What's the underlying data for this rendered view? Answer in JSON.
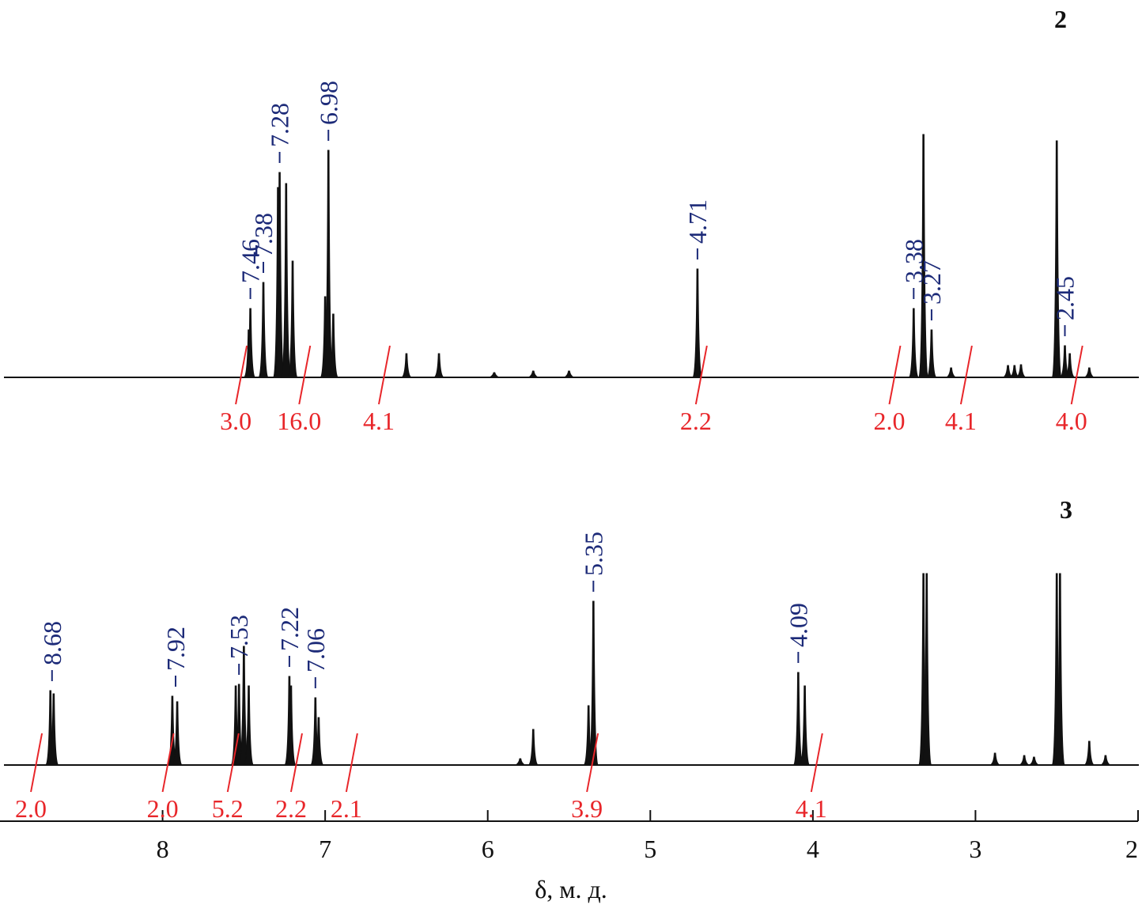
{
  "chart_data": {
    "type": "nmr",
    "xlabel": "δ, м. д.",
    "xlim": [
      9,
      2
    ],
    "xticks": [
      8,
      7,
      6,
      5,
      4,
      3,
      2
    ],
    "spectra": [
      {
        "label": "2",
        "ylim": [
          0,
          320
        ],
        "color": "#111111",
        "peaks": {
          "x": [
            7.47,
            7.46,
            7.38,
            7.29,
            7.28,
            7.24,
            7.2,
            7.0,
            6.98,
            6.95,
            6.5,
            6.3,
            5.96,
            5.72,
            5.5,
            4.71,
            3.38,
            3.32,
            3.27,
            3.15,
            2.8,
            2.76,
            2.72,
            2.5,
            2.45,
            2.42,
            2.3
          ],
          "values": [
            60,
            87,
            120,
            240,
            259,
            245,
            147,
            102,
            287,
            80,
            30,
            30,
            6,
            8,
            8,
            137,
            87,
            307,
            60,
            12,
            15,
            15,
            16,
            299,
            40,
            30,
            12
          ]
        },
        "shifts": {
          "values": [
            7.46,
            7.38,
            7.28,
            6.98,
            4.71,
            3.38,
            3.27,
            2.45
          ],
          "color": "#1c2a78"
        },
        "integrals": {
          "x": [
            7.55,
            7.16,
            6.67,
            4.72,
            3.53,
            3.09,
            2.41
          ],
          "values": [
            3,
            16,
            4.1,
            2.2,
            2,
            4.1,
            4
          ],
          "value_labels": [
            "3.0",
            "16.0",
            "4.1",
            "2.2",
            "2.0",
            "4.1",
            "4.0"
          ],
          "color": "#e8262a"
        }
      },
      {
        "label": "3",
        "ylim": [
          0,
          320
        ],
        "color": "#111111",
        "peaks": {
          "x": [
            8.69,
            8.67,
            7.94,
            7.91,
            7.55,
            7.53,
            7.5,
            7.47,
            7.22,
            7.21,
            7.06,
            7.04,
            5.8,
            5.72,
            5.38,
            5.35,
            4.09,
            4.05,
            3.32,
            3.3,
            2.88,
            2.7,
            2.64,
            2.5,
            2.48,
            2.3,
            2.2
          ],
          "values": [
            94,
            90,
            87,
            80,
            100,
            102,
            150,
            100,
            112,
            100,
            85,
            60,
            8,
            45,
            75,
            207,
            117,
            100,
            242,
            242,
            15,
            12,
            10,
            242,
            242,
            30,
            12
          ]
        },
        "shifts": {
          "values": [
            8.68,
            7.92,
            7.53,
            7.22,
            7.06,
            5.35,
            4.09
          ],
          "color": "#1c2a78"
        },
        "integrals": {
          "x": [
            8.81,
            8.0,
            7.6,
            7.21,
            6.87,
            5.39,
            4.01
          ],
          "values": [
            2,
            2,
            5.2,
            2.2,
            2.1,
            3.9,
            4.1
          ],
          "value_labels": [
            "2.0",
            "2.0",
            "5.2",
            "2.2",
            "2.1",
            "3.9",
            "4.1"
          ],
          "color": "#e8262a"
        }
      }
    ]
  }
}
